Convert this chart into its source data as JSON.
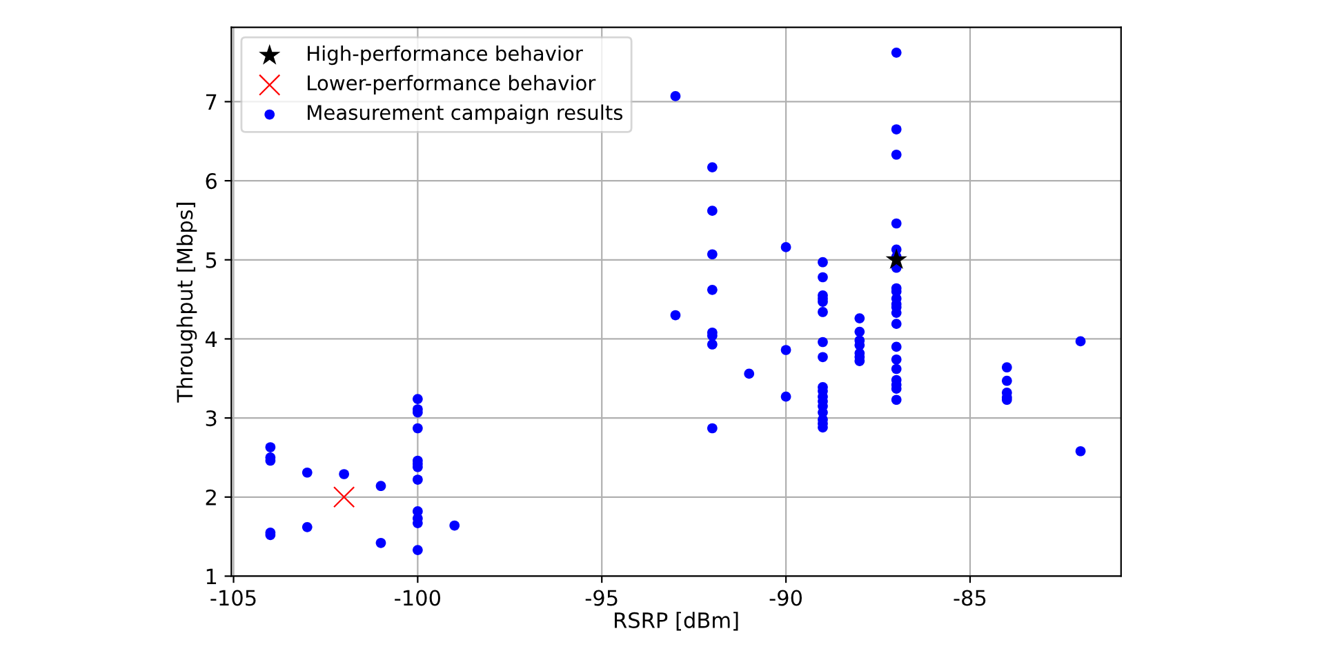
{
  "chart_data": {
    "type": "scatter",
    "xlabel": "RSRP [dBm]",
    "ylabel": "Throughput [Mbps]",
    "xlim": [
      -105.06,
      -80.9
    ],
    "ylim": [
      1,
      7.94
    ],
    "xticks": [
      -105,
      -100,
      -95,
      -90,
      -85
    ],
    "yticks": [
      1,
      2,
      3,
      4,
      5,
      6,
      7
    ],
    "grid": true,
    "legend": "top left",
    "series": [
      {
        "name": "High-performance behavior",
        "color": "#000000",
        "marker": "star",
        "x": [
          -87
        ],
        "values": [
          5.0
        ]
      },
      {
        "name": "Lower-performance behavior",
        "color": "#ff0000",
        "marker": "cross",
        "x": [
          -102
        ],
        "values": [
          2.0
        ]
      },
      {
        "name": "Measurement campaign results",
        "color": "#0000ff",
        "marker": "circle",
        "x": [
          -104,
          -104,
          -104,
          -104,
          -104,
          -103,
          -103,
          -102,
          -101,
          -101,
          -100,
          -100,
          -100,
          -100,
          -100,
          -100,
          -100,
          -100,
          -100,
          -100,
          -100,
          -100,
          -99,
          -93,
          -93,
          -92,
          -92,
          -92,
          -92,
          -92,
          -92,
          -92,
          -92,
          -91,
          -90,
          -90,
          -90,
          -89,
          -89,
          -89,
          -89,
          -89,
          -89,
          -89,
          -89,
          -89,
          -89,
          -89,
          -89,
          -89,
          -89,
          -89,
          -89,
          -89,
          -88,
          -88,
          -88,
          -88,
          -88,
          -88,
          -88,
          -87,
          -87,
          -87,
          -87,
          -87,
          -87,
          -87,
          -87,
          -87,
          -87,
          -87,
          -87,
          -87,
          -87,
          -87,
          -87,
          -87,
          -87,
          -87,
          -87,
          -87,
          -84,
          -84,
          -84,
          -84,
          -84,
          -82,
          -82
        ],
        "values": [
          2.63,
          2.5,
          2.46,
          1.55,
          1.52,
          2.31,
          1.62,
          2.29,
          2.14,
          1.42,
          3.24,
          3.11,
          3.07,
          2.87,
          2.46,
          2.42,
          2.38,
          2.22,
          1.82,
          1.73,
          1.67,
          1.33,
          1.64,
          7.07,
          4.3,
          6.17,
          5.62,
          5.07,
          4.62,
          4.08,
          4.04,
          3.93,
          2.87,
          3.56,
          5.16,
          3.86,
          3.27,
          4.97,
          4.78,
          4.55,
          4.51,
          4.47,
          4.34,
          3.96,
          3.77,
          3.39,
          3.34,
          3.27,
          3.21,
          3.15,
          3.07,
          2.98,
          2.93,
          2.88,
          4.26,
          4.09,
          3.98,
          3.92,
          3.82,
          3.77,
          3.72,
          7.62,
          6.65,
          6.33,
          5.46,
          5.13,
          5.04,
          4.9,
          4.64,
          4.6,
          4.51,
          4.44,
          4.4,
          4.33,
          4.19,
          3.9,
          3.74,
          3.62,
          3.48,
          3.42,
          3.37,
          3.23,
          3.64,
          3.47,
          3.32,
          3.26,
          3.23,
          3.97,
          2.58
        ]
      }
    ]
  }
}
